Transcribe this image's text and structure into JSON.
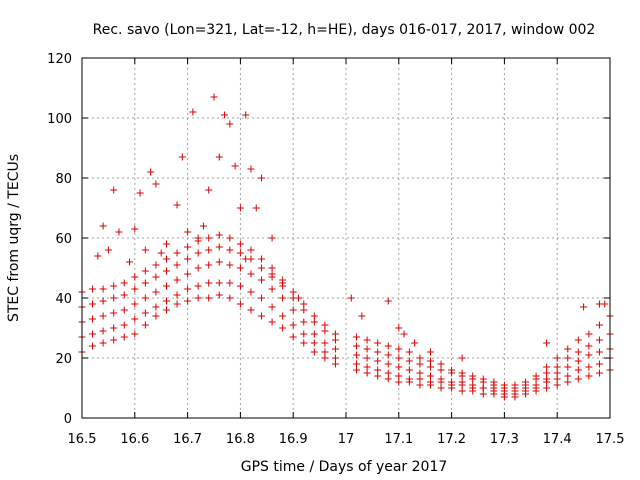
{
  "chart_data": {
    "type": "scatter",
    "title": "Rec. savo (Lon=321, Lat=-12, h=HE), days 016-017, 2017, window 002",
    "xlabel": "GPS time / Days of year 2017",
    "ylabel": "STEC from uqrg / TECUs",
    "xlim": [
      16.5,
      17.5
    ],
    "ylim": [
      0,
      120
    ],
    "xticks": [
      "16.5",
      "16.6",
      "16.7",
      "16.8",
      "16.9",
      "17",
      "17.1",
      "17.2",
      "17.3",
      "17.4",
      "17.5"
    ],
    "yticks": [
      "0",
      "20",
      "40",
      "60",
      "80",
      "100",
      "120"
    ],
    "grid": true,
    "marker": "+",
    "color": "#dd0000",
    "series": [
      {
        "name": "",
        "x": [
          16.5,
          16.52,
          16.54,
          16.56,
          16.58,
          16.6,
          16.62,
          16.64,
          16.66,
          16.68,
          16.7,
          16.72,
          16.74,
          16.76,
          16.78,
          16.8,
          16.82,
          16.84,
          16.86,
          16.88,
          16.9,
          16.92,
          16.94,
          16.96,
          16.98,
          17.02,
          17.04,
          17.06,
          17.08,
          17.1,
          17.12,
          17.14,
          17.16,
          17.18,
          17.2,
          17.22,
          17.24,
          17.26,
          17.28,
          17.3,
          17.32,
          17.34,
          17.36,
          17.38,
          17.4,
          17.42,
          17.44,
          17.46,
          17.48,
          17.5
        ],
        "y": [
          22,
          24,
          25,
          26,
          27,
          28,
          31,
          34,
          36,
          38,
          39,
          40,
          40,
          41,
          40,
          38,
          36,
          34,
          32,
          30,
          27,
          25,
          22,
          20,
          18,
          16,
          15,
          14,
          13,
          12,
          12,
          11,
          11,
          10,
          10,
          9,
          9,
          8,
          8,
          7,
          7,
          8,
          9,
          10,
          11,
          12,
          13,
          14,
          15,
          16
        ]
      },
      {
        "name": "",
        "x": [
          16.5,
          16.52,
          16.54,
          16.56,
          16.58,
          16.6,
          16.62,
          16.64,
          16.66,
          16.68,
          16.7,
          16.72,
          16.74,
          16.76,
          16.78,
          16.8,
          16.82,
          16.84,
          16.86,
          16.88,
          16.9,
          16.92,
          16.94,
          16.96,
          16.98,
          17.02,
          17.04,
          17.06,
          17.08,
          17.1,
          17.12,
          17.14,
          17.16,
          17.18,
          17.2,
          17.22,
          17.24,
          17.26,
          17.28,
          17.3,
          17.32,
          17.34,
          17.36,
          17.38,
          17.4,
          17.42,
          17.44,
          17.46,
          17.48,
          17.5
        ],
        "y": [
          27,
          28,
          29,
          30,
          31,
          33,
          35,
          37,
          39,
          41,
          43,
          44,
          45,
          45,
          45,
          44,
          42,
          40,
          37,
          34,
          31,
          28,
          25,
          22,
          20,
          18,
          17,
          16,
          15,
          14,
          13,
          13,
          12,
          12,
          11,
          11,
          10,
          10,
          9,
          8,
          8,
          9,
          10,
          12,
          13,
          14,
          16,
          17,
          18,
          20
        ]
      },
      {
        "name": "",
        "x": [
          16.5,
          16.52,
          16.54,
          16.56,
          16.58,
          16.6,
          16.62,
          16.64,
          16.66,
          16.68,
          16.7,
          16.72,
          16.74,
          16.76,
          16.78,
          16.8,
          16.82,
          16.84,
          16.86,
          16.88,
          16.9,
          16.92,
          16.94,
          16.96,
          16.98,
          17.02,
          17.04,
          17.06,
          17.08,
          17.1,
          17.12,
          17.14,
          17.16,
          17.18,
          17.2,
          17.22,
          17.24,
          17.26,
          17.28,
          17.3,
          17.32,
          17.34,
          17.36,
          17.38,
          17.4,
          17.42,
          17.44,
          17.46,
          17.48,
          17.5
        ],
        "y": [
          32,
          33,
          34,
          35,
          36,
          38,
          40,
          42,
          44,
          46,
          48,
          50,
          51,
          52,
          51,
          50,
          48,
          46,
          43,
          40,
          36,
          32,
          28,
          25,
          23,
          21,
          20,
          19,
          18,
          17,
          16,
          15,
          14,
          13,
          12,
          12,
          11,
          10,
          10,
          9,
          9,
          10,
          11,
          13,
          15,
          17,
          19,
          21,
          22,
          23
        ]
      },
      {
        "name": "",
        "x": [
          16.5,
          16.52,
          16.54,
          16.56,
          16.58,
          16.6,
          16.62,
          16.64,
          16.66,
          16.68,
          16.7,
          16.72,
          16.74,
          16.76,
          16.78,
          16.8,
          16.82,
          16.84,
          16.86,
          16.88,
          16.9,
          16.92,
          16.94,
          16.96,
          16.98,
          17.02,
          17.04,
          17.06,
          17.08,
          17.1,
          17.12,
          17.14,
          17.16,
          17.18,
          17.2,
          17.22,
          17.24,
          17.26,
          17.28,
          17.3,
          17.32,
          17.34,
          17.36,
          17.38,
          17.4,
          17.42,
          17.44,
          17.46,
          17.48,
          17.5
        ],
        "y": [
          37,
          38,
          39,
          40,
          41,
          43,
          45,
          47,
          49,
          51,
          53,
          55,
          56,
          57,
          56,
          55,
          53,
          50,
          47,
          44,
          40,
          36,
          32,
          29,
          26,
          24,
          23,
          22,
          21,
          20,
          19,
          18,
          17,
          16,
          15,
          14,
          13,
          12,
          11,
          10,
          10,
          11,
          13,
          15,
          17,
          20,
          22,
          24,
          26,
          28
        ]
      },
      {
        "name": "",
        "x": [
          16.5,
          16.52,
          16.54,
          16.56,
          16.58,
          16.6,
          16.62,
          16.64,
          16.66,
          16.68,
          16.7,
          16.72,
          16.74,
          16.76,
          16.78,
          16.8,
          16.82,
          16.84,
          16.86,
          16.88,
          16.9,
          16.92,
          16.94,
          16.96,
          16.98,
          17.02,
          17.04,
          17.06,
          17.08,
          17.1,
          17.12,
          17.14,
          17.16,
          17.18,
          17.2,
          17.22,
          17.24,
          17.26,
          17.28,
          17.3,
          17.32,
          17.34,
          17.36,
          17.38,
          17.4,
          17.42,
          17.44,
          17.46,
          17.48,
          17.5
        ],
        "y": [
          42,
          43,
          43,
          44,
          45,
          47,
          49,
          51,
          53,
          55,
          57,
          59,
          60,
          61,
          60,
          58,
          56,
          53,
          50,
          46,
          42,
          38,
          34,
          31,
          28,
          27,
          26,
          25,
          24,
          23,
          22,
          20,
          19,
          18,
          16,
          15,
          14,
          13,
          12,
          11,
          11,
          12,
          14,
          17,
          20,
          23,
          26,
          28,
          31,
          34
        ]
      },
      {
        "name": "",
        "x": [
          16.53,
          16.56,
          16.6,
          16.61,
          16.63,
          16.64,
          16.68,
          16.69,
          16.71,
          16.73,
          16.74,
          16.75,
          16.76,
          16.77,
          16.78,
          16.79,
          16.8,
          16.81,
          16.82,
          16.83,
          16.84,
          16.86,
          16.54,
          16.55,
          16.57,
          16.59,
          16.62,
          16.65,
          16.66,
          16.7,
          16.72,
          16.81,
          16.86,
          16.88,
          16.91,
          17.01,
          17.03,
          17.08,
          17.1,
          17.11,
          17.13,
          17.16,
          17.22,
          17.38,
          17.45,
          17.48,
          17.49
        ],
        "y": [
          54,
          76,
          63,
          75,
          82,
          78,
          71,
          87,
          102,
          64,
          76,
          107,
          87,
          101,
          98,
          84,
          70,
          101,
          83,
          70,
          80,
          60,
          64,
          56,
          62,
          52,
          56,
          55,
          58,
          62,
          60,
          53,
          48,
          45,
          40,
          40,
          34,
          39,
          30,
          28,
          25,
          22,
          20,
          25,
          37,
          38,
          38
        ]
      }
    ]
  }
}
